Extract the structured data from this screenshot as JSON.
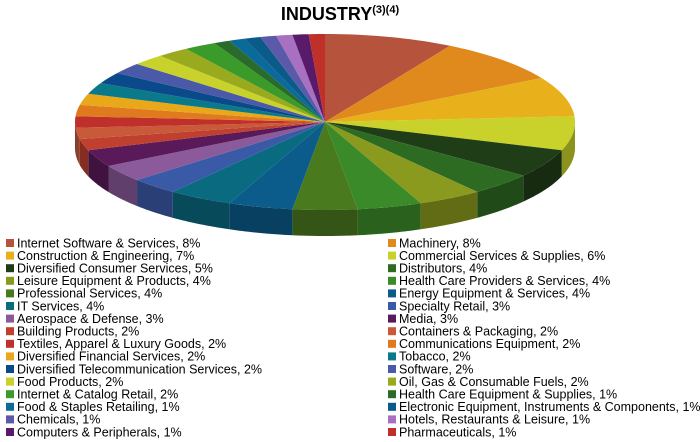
{
  "chart_data": {
    "type": "pie3d",
    "title": "INDUSTRY",
    "title_superscript": "(3)(4)",
    "labels": [
      "Internet Software & Services, 8%",
      "Machinery, 8%",
      "Construction & Engineering, 7%",
      "Commercial Services & Supplies, 6%",
      "Diversified Consumer Services, 5%",
      "Distributors, 4%",
      "Leisure Equipment & Products, 4%",
      "Health Care Providers & Services, 4%",
      "Professional Services, 4%",
      "Energy Equipment & Services, 4%",
      "IT Services, 4%",
      "Specialty Retail, 3%",
      "Aerospace & Defense, 3%",
      "Media, 3%",
      "Building Products, 2%",
      "Containers & Packaging, 2%",
      "Textiles, Apparel & Luxury Goods, 2%",
      "Communications Equipment, 2%",
      "Diversified Financial Services, 2%",
      "Tobacco, 2%",
      "Diversified Telecommunication Services, 2%",
      "Software, 2%",
      "Food Products, 2%",
      "Oil, Gas & Consumable Fuels, 2%",
      "Internet & Catalog Retail, 2%",
      "Health Care Equipment & Supplies, 1%",
      "Food & Staples Retailing, 1%",
      "Electronic Equipment, Instruments & Components, 1%",
      "Chemicals, 1%",
      "Hotels, Restaurants & Leisure, 1%",
      "Computers & Peripherals, 1%",
      "Pharmaceuticals, 1%"
    ],
    "values": [
      8,
      8,
      7,
      6,
      5,
      4,
      4,
      4,
      4,
      4,
      4,
      3,
      3,
      3,
      2,
      2,
      2,
      2,
      2,
      2,
      2,
      2,
      2,
      2,
      2,
      1,
      1,
      1,
      1,
      1,
      1,
      1
    ],
    "colors": [
      "#b5533c",
      "#e08a1e",
      "#e8b01a",
      "#c8d22a",
      "#1f3d17",
      "#2e6b22",
      "#8a9a1e",
      "#3a8a2a",
      "#4a7a1e",
      "#0b5c8a",
      "#0a6a80",
      "#3a5aa8",
      "#8a5a9a",
      "#5a1a5a",
      "#c04030",
      "#c85a3a",
      "#c0302a",
      "#e07a1e",
      "#e8a81a",
      "#0a7a8a",
      "#0a4a8a",
      "#4a5aa8",
      "#c8d22a",
      "#9aaa1e",
      "#3a9a2a",
      "#2a6a2a",
      "#0a6a9a",
      "#0a5a8a",
      "#5a5aa8",
      "#a870c0",
      "#5a1a6a",
      "#c0302a"
    ]
  }
}
